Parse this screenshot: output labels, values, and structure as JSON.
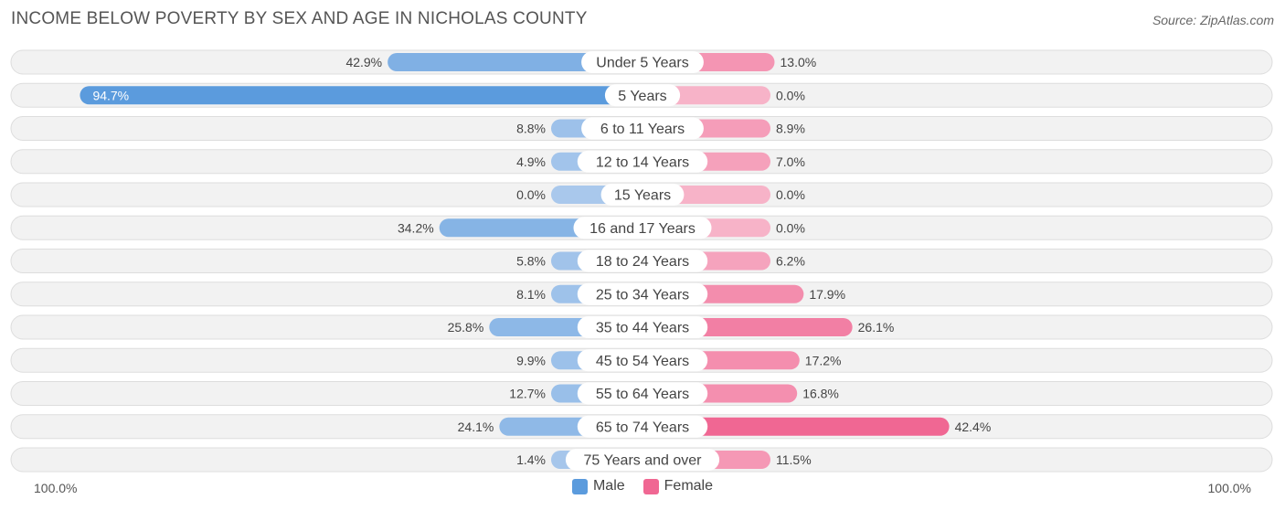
{
  "title": "INCOME BELOW POVERTY BY SEX AND AGE IN NICHOLAS COUNTY",
  "source": "Source: ZipAtlas.com",
  "chart_data": {
    "type": "bar",
    "orientation": "horizontal-diverging",
    "categories": [
      "Under 5 Years",
      "5 Years",
      "6 to 11 Years",
      "12 to 14 Years",
      "15 Years",
      "16 and 17 Years",
      "18 to 24 Years",
      "25 to 34 Years",
      "35 to 44 Years",
      "45 to 54 Years",
      "55 to 64 Years",
      "65 to 74 Years",
      "75 Years and over"
    ],
    "series": [
      {
        "name": "Male",
        "values": [
          42.9,
          94.7,
          8.8,
          4.9,
          0.0,
          34.2,
          5.8,
          8.1,
          25.8,
          9.9,
          12.7,
          24.1,
          1.4
        ],
        "labels": [
          "42.9%",
          "94.7%",
          "8.8%",
          "4.9%",
          "0.0%",
          "34.2%",
          "5.8%",
          "8.1%",
          "25.8%",
          "9.9%",
          "12.7%",
          "24.1%",
          "1.4%"
        ]
      },
      {
        "name": "Female",
        "values": [
          13.0,
          0.0,
          8.9,
          7.0,
          0.0,
          0.0,
          6.2,
          17.9,
          26.1,
          17.2,
          16.8,
          42.4,
          11.5
        ],
        "labels": [
          "13.0%",
          "0.0%",
          "8.9%",
          "7.0%",
          "0.0%",
          "0.0%",
          "6.2%",
          "17.9%",
          "26.1%",
          "17.2%",
          "16.8%",
          "42.4%",
          "11.5%"
        ]
      }
    ],
    "xlim": [
      -100,
      100
    ],
    "axis_left_label": "100.0%",
    "axis_right_label": "100.0%",
    "legend_position": "bottom-center",
    "colors": {
      "male_light": "#a9c8ec",
      "male_dark": "#5b9bdd",
      "female_light": "#f7b3c8",
      "female_dark": "#f06793",
      "track": "#f2f2f2",
      "track_border": "#dddddd"
    }
  },
  "legend": {
    "male_label": "Male",
    "female_label": "Female"
  }
}
